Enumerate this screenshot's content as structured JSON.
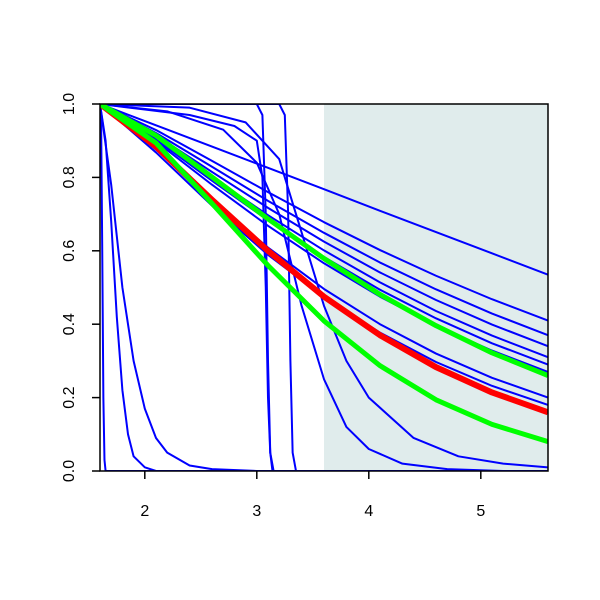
{
  "chart_data": {
    "type": "line",
    "xlim": [
      1.6,
      5.6
    ],
    "ylim": [
      0,
      1
    ],
    "xticks": [
      2,
      3,
      4,
      5
    ],
    "yticks": [
      {
        "value": 0,
        "label": "0.0"
      },
      0.2,
      0.4,
      0.6,
      0.8,
      {
        "value": 1,
        "label": "1.0"
      }
    ],
    "highlight": {
      "xrange": [
        3.6,
        5.6
      ],
      "color": "#e0ecec"
    },
    "x": [
      1.6,
      2.1,
      2.6,
      3.1,
      3.6,
      4.1,
      4.6,
      5.1,
      5.6
    ],
    "series": [
      {
        "color": "#0000ff",
        "line_width": 2,
        "values": [
          1,
          0.942,
          0.884,
          0.826,
          0.768,
          0.709,
          0.651,
          0.593,
          0.535
        ]
      },
      {
        "color": "#0000ff",
        "line_width": 2,
        "values": [
          1,
          0.929,
          0.845,
          0.76,
          0.678,
          0.602,
          0.532,
          0.468,
          0.41
        ]
      },
      {
        "color": "#0000ff",
        "line_width": 2,
        "values": [
          1,
          0.921,
          0.829,
          0.736,
          0.649,
          0.568,
          0.495,
          0.429,
          0.37
        ]
      },
      {
        "color": "#0000ff",
        "line_width": 2,
        "values": [
          1,
          0.915,
          0.815,
          0.717,
          0.625,
          0.541,
          0.466,
          0.399,
          0.34
        ]
      },
      {
        "color": "#0000ff",
        "line_width": 2,
        "values": [
          1,
          0.908,
          0.801,
          0.697,
          0.601,
          0.514,
          0.436,
          0.369,
          0.31
        ]
      },
      {
        "color": "#0000ff",
        "line_width": 2,
        "values": [
          1,
          0.903,
          0.791,
          0.683,
          0.583,
          0.494,
          0.416,
          0.348,
          0.29
        ]
      },
      {
        "color": "#0000ff",
        "line_width": 2,
        "values": [
          1,
          0.898,
          0.78,
          0.668,
          0.566,
          0.475,
          0.396,
          0.328,
          0.27
        ]
      },
      {
        "color": "#0000ff",
        "line_width": 2,
        "values": [
          1,
          0.876,
          0.737,
          0.609,
          0.496,
          0.4,
          0.32,
          0.254,
          0.2
        ]
      },
      {
        "color": "#0000ff",
        "line_width": 2,
        "values": [
          1,
          0.868,
          0.723,
          0.589,
          0.474,
          0.377,
          0.297,
          0.232,
          0.18
        ]
      },
      {
        "color": "#0000ff",
        "line_width": 2,
        "x": [
          1.6,
          1.61,
          1.62,
          1.63,
          1.64,
          1.65,
          5.6
        ],
        "values": [
          1,
          0.95,
          0.6,
          0.2,
          0.03,
          0,
          0
        ]
      },
      {
        "color": "#0000ff",
        "line_width": 2,
        "x": [
          1.6,
          1.65,
          1.7,
          1.75,
          1.8,
          1.85,
          1.9,
          2.0,
          2.1,
          5.6
        ],
        "values": [
          1,
          0.9,
          0.68,
          0.42,
          0.22,
          0.1,
          0.04,
          0.01,
          0,
          0
        ]
      },
      {
        "color": "#0000ff",
        "line_width": 2,
        "x": [
          1.6,
          1.7,
          1.8,
          1.9,
          2.0,
          2.1,
          2.2,
          2.4,
          2.6,
          3.0,
          5.6
        ],
        "values": [
          1,
          0.78,
          0.5,
          0.3,
          0.17,
          0.09,
          0.05,
          0.015,
          0.005,
          0,
          0
        ]
      },
      {
        "color": "#0000ff",
        "line_width": 2,
        "x": [
          1.6,
          2.0,
          2.4,
          2.8,
          3.0,
          3.05,
          3.08,
          3.1,
          3.12,
          3.15,
          5.6
        ],
        "values": [
          1,
          0.985,
          0.97,
          0.94,
          0.9,
          0.8,
          0.5,
          0.2,
          0.05,
          0,
          0
        ]
      },
      {
        "color": "#0000ff",
        "line_width": 2,
        "x": [
          1.6,
          3.0,
          3.05,
          3.08,
          3.1,
          3.12,
          3.14,
          5.6
        ],
        "values": [
          1,
          1,
          0.97,
          0.7,
          0.3,
          0.05,
          0,
          0
        ]
      },
      {
        "color": "#0000ff",
        "line_width": 2,
        "x": [
          1.6,
          3.2,
          3.25,
          3.28,
          3.3,
          3.32,
          3.35,
          5.6
        ],
        "values": [
          1,
          1,
          0.97,
          0.7,
          0.3,
          0.05,
          0,
          0
        ]
      },
      {
        "color": "#0000ff",
        "line_width": 2,
        "x": [
          1.6,
          2.2,
          2.7,
          3.0,
          3.2,
          3.4,
          3.6,
          3.8,
          4.0,
          4.3,
          4.7,
          5.2,
          5.6
        ],
        "values": [
          1,
          0.98,
          0.93,
          0.84,
          0.7,
          0.45,
          0.25,
          0.12,
          0.06,
          0.02,
          0.005,
          0,
          0
        ]
      },
      {
        "color": "#0000ff",
        "line_width": 2,
        "x": [
          1.6,
          2.4,
          2.9,
          3.2,
          3.4,
          3.6,
          3.8,
          4.0,
          4.4,
          4.8,
          5.2,
          5.6
        ],
        "values": [
          1,
          0.99,
          0.95,
          0.85,
          0.65,
          0.45,
          0.3,
          0.2,
          0.09,
          0.04,
          0.02,
          0.01
        ]
      },
      {
        "color": "#ff0000",
        "line_width": 6,
        "values": [
          1,
          0.884,
          0.739,
          0.6,
          0.475,
          0.37,
          0.283,
          0.214,
          0.16
        ]
      },
      {
        "color": "#00ff00",
        "line_width": 5,
        "values": [
          1,
          0.914,
          0.801,
          0.687,
          0.579,
          0.481,
          0.396,
          0.322,
          0.26
        ]
      },
      {
        "color": "#00ff00",
        "line_width": 5,
        "values": [
          1,
          0.894,
          0.729,
          0.56,
          0.409,
          0.287,
          0.194,
          0.127,
          0.08
        ]
      }
    ]
  }
}
